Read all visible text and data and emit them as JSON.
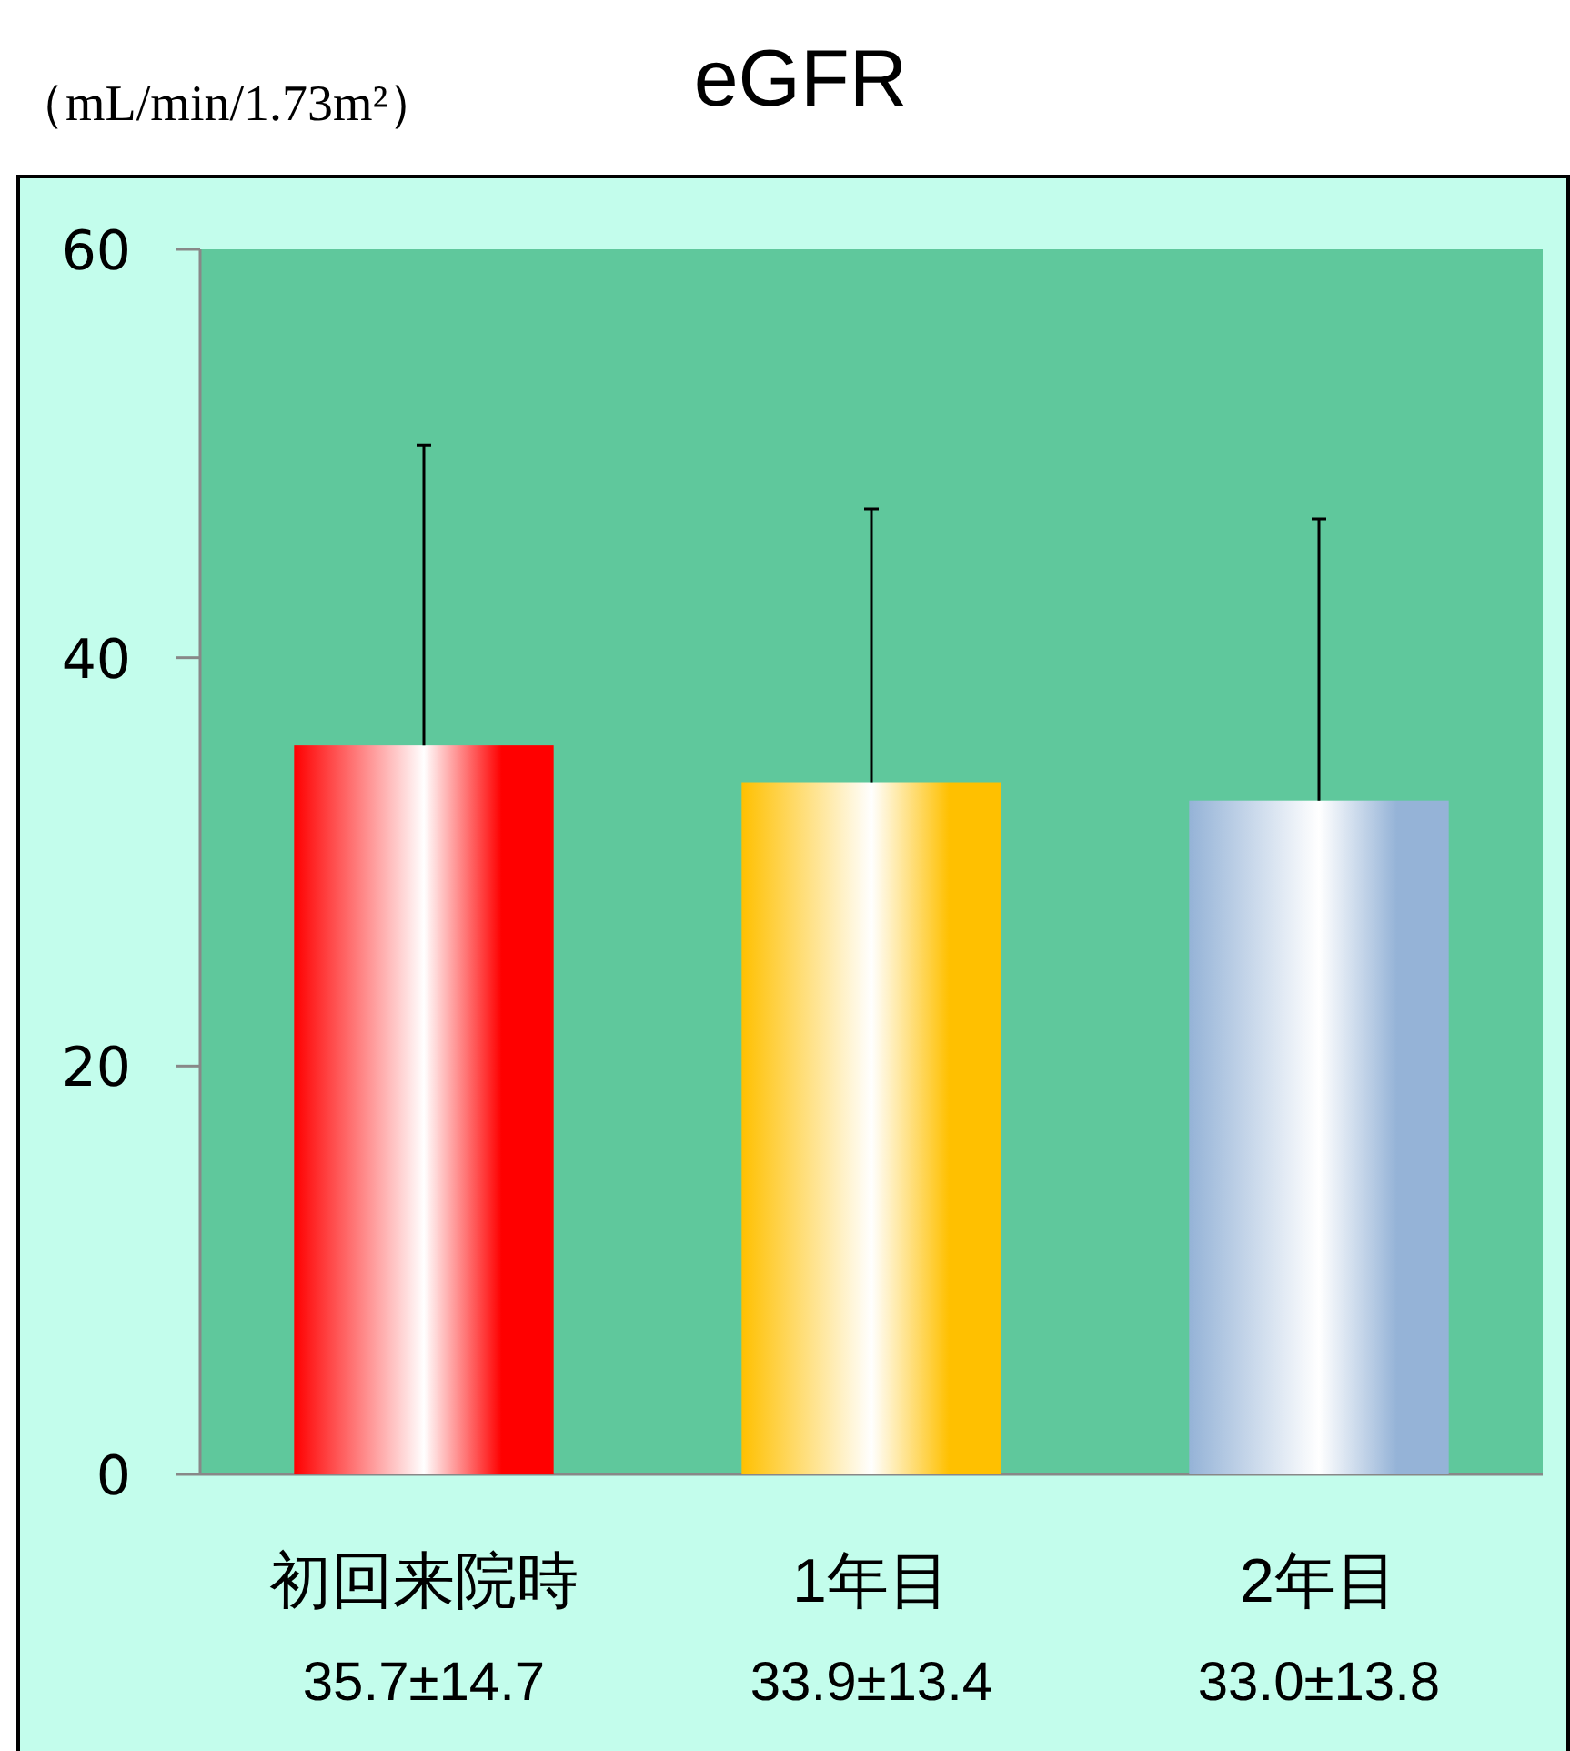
{
  "chart_data": {
    "type": "bar",
    "title": "eGFR",
    "ylabel": "（mL/min/1.73m²）",
    "categories": [
      "初回来院時",
      "1年目",
      "2年目"
    ],
    "values": [
      35.7,
      33.9,
      33.0
    ],
    "colors": [
      "#ff0000",
      "#ffc000",
      "#95b3d7"
    ],
    "errors": [
      [
        35.7,
        50.4
      ],
      [
        33.9,
        47.3
      ],
      [
        33.0,
        46.8
      ]
    ],
    "value_labels": [
      "35.7±14.7",
      "33.9±13.4",
      "33.0±13.8"
    ],
    "ylim": [
      0,
      60
    ],
    "yticks": [
      0,
      20,
      40,
      60
    ]
  }
}
